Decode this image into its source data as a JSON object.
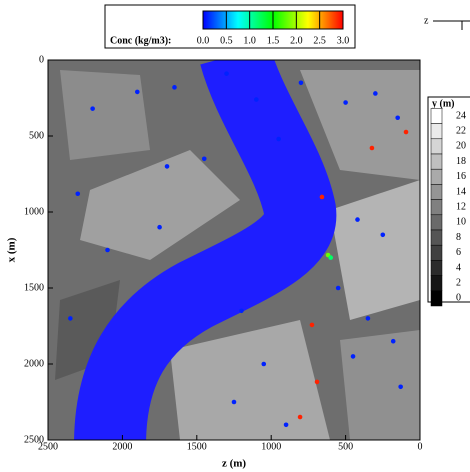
{
  "chart_data": {
    "type": "scatter",
    "xlabel": "z (m)",
    "ylabel": "x (m)",
    "xlim": [
      2500,
      0
    ],
    "ylim": [
      2500,
      0
    ],
    "xticks": [
      2500,
      2000,
      1500,
      1000,
      500,
      0
    ],
    "yticks": [
      2500,
      2000,
      1500,
      1000,
      500,
      0
    ],
    "colorbar": {
      "title": "Conc (kg/m3):",
      "ticks": [
        {
          "value": 0,
          "label": "0.0"
        },
        0.5,
        {
          "value": 1,
          "label": "1.0"
        },
        1.5,
        {
          "value": 2,
          "label": "2.0"
        },
        2.5,
        {
          "value": 3,
          "label": "3.0"
        }
      ],
      "colormap": [
        "#0000ff",
        "#00ffff",
        "#00ff00",
        "#ffff00",
        "#ff0000"
      ]
    },
    "elevation_legend": {
      "title": "y (m)",
      "ticks": [
        24,
        22,
        20,
        18,
        16,
        14,
        12,
        10,
        8,
        6,
        4,
        2,
        0
      ]
    },
    "orientation_label": "z",
    "x": [
      94,
      323,
      659,
      618,
      600,
      726,
      692,
      806,
      2200,
      1900,
      1650,
      1300,
      1100,
      800,
      500,
      300,
      150,
      2300,
      1700,
      1450,
      950,
      420,
      250,
      2100,
      1750,
      1200,
      550,
      350,
      180,
      2350,
      1050,
      450,
      130,
      1250,
      900
    ],
    "y": [
      474,
      579,
      901,
      1283,
      1300,
      1743,
      2118,
      2349,
      320,
      210,
      180,
      90,
      260,
      150,
      280,
      220,
      380,
      880,
      700,
      650,
      520,
      1050,
      1150,
      1250,
      1100,
      1650,
      1500,
      1700,
      1850,
      1700,
      2000,
      1950,
      2150,
      2250,
      2400
    ],
    "values": [
      2.9,
      2.9,
      2.9,
      1.8,
      1.2,
      2.9,
      2.9,
      2.9,
      0.1,
      0.1,
      0.1,
      0.1,
      0.1,
      0.1,
      0.1,
      0.1,
      0.1,
      0.1,
      0.1,
      0.1,
      0.1,
      0.1,
      0.1,
      0.1,
      0.1,
      0.1,
      0.1,
      0.1,
      0.1,
      0.1,
      0.1,
      0.1,
      0.1,
      0.1,
      0.1
    ]
  }
}
